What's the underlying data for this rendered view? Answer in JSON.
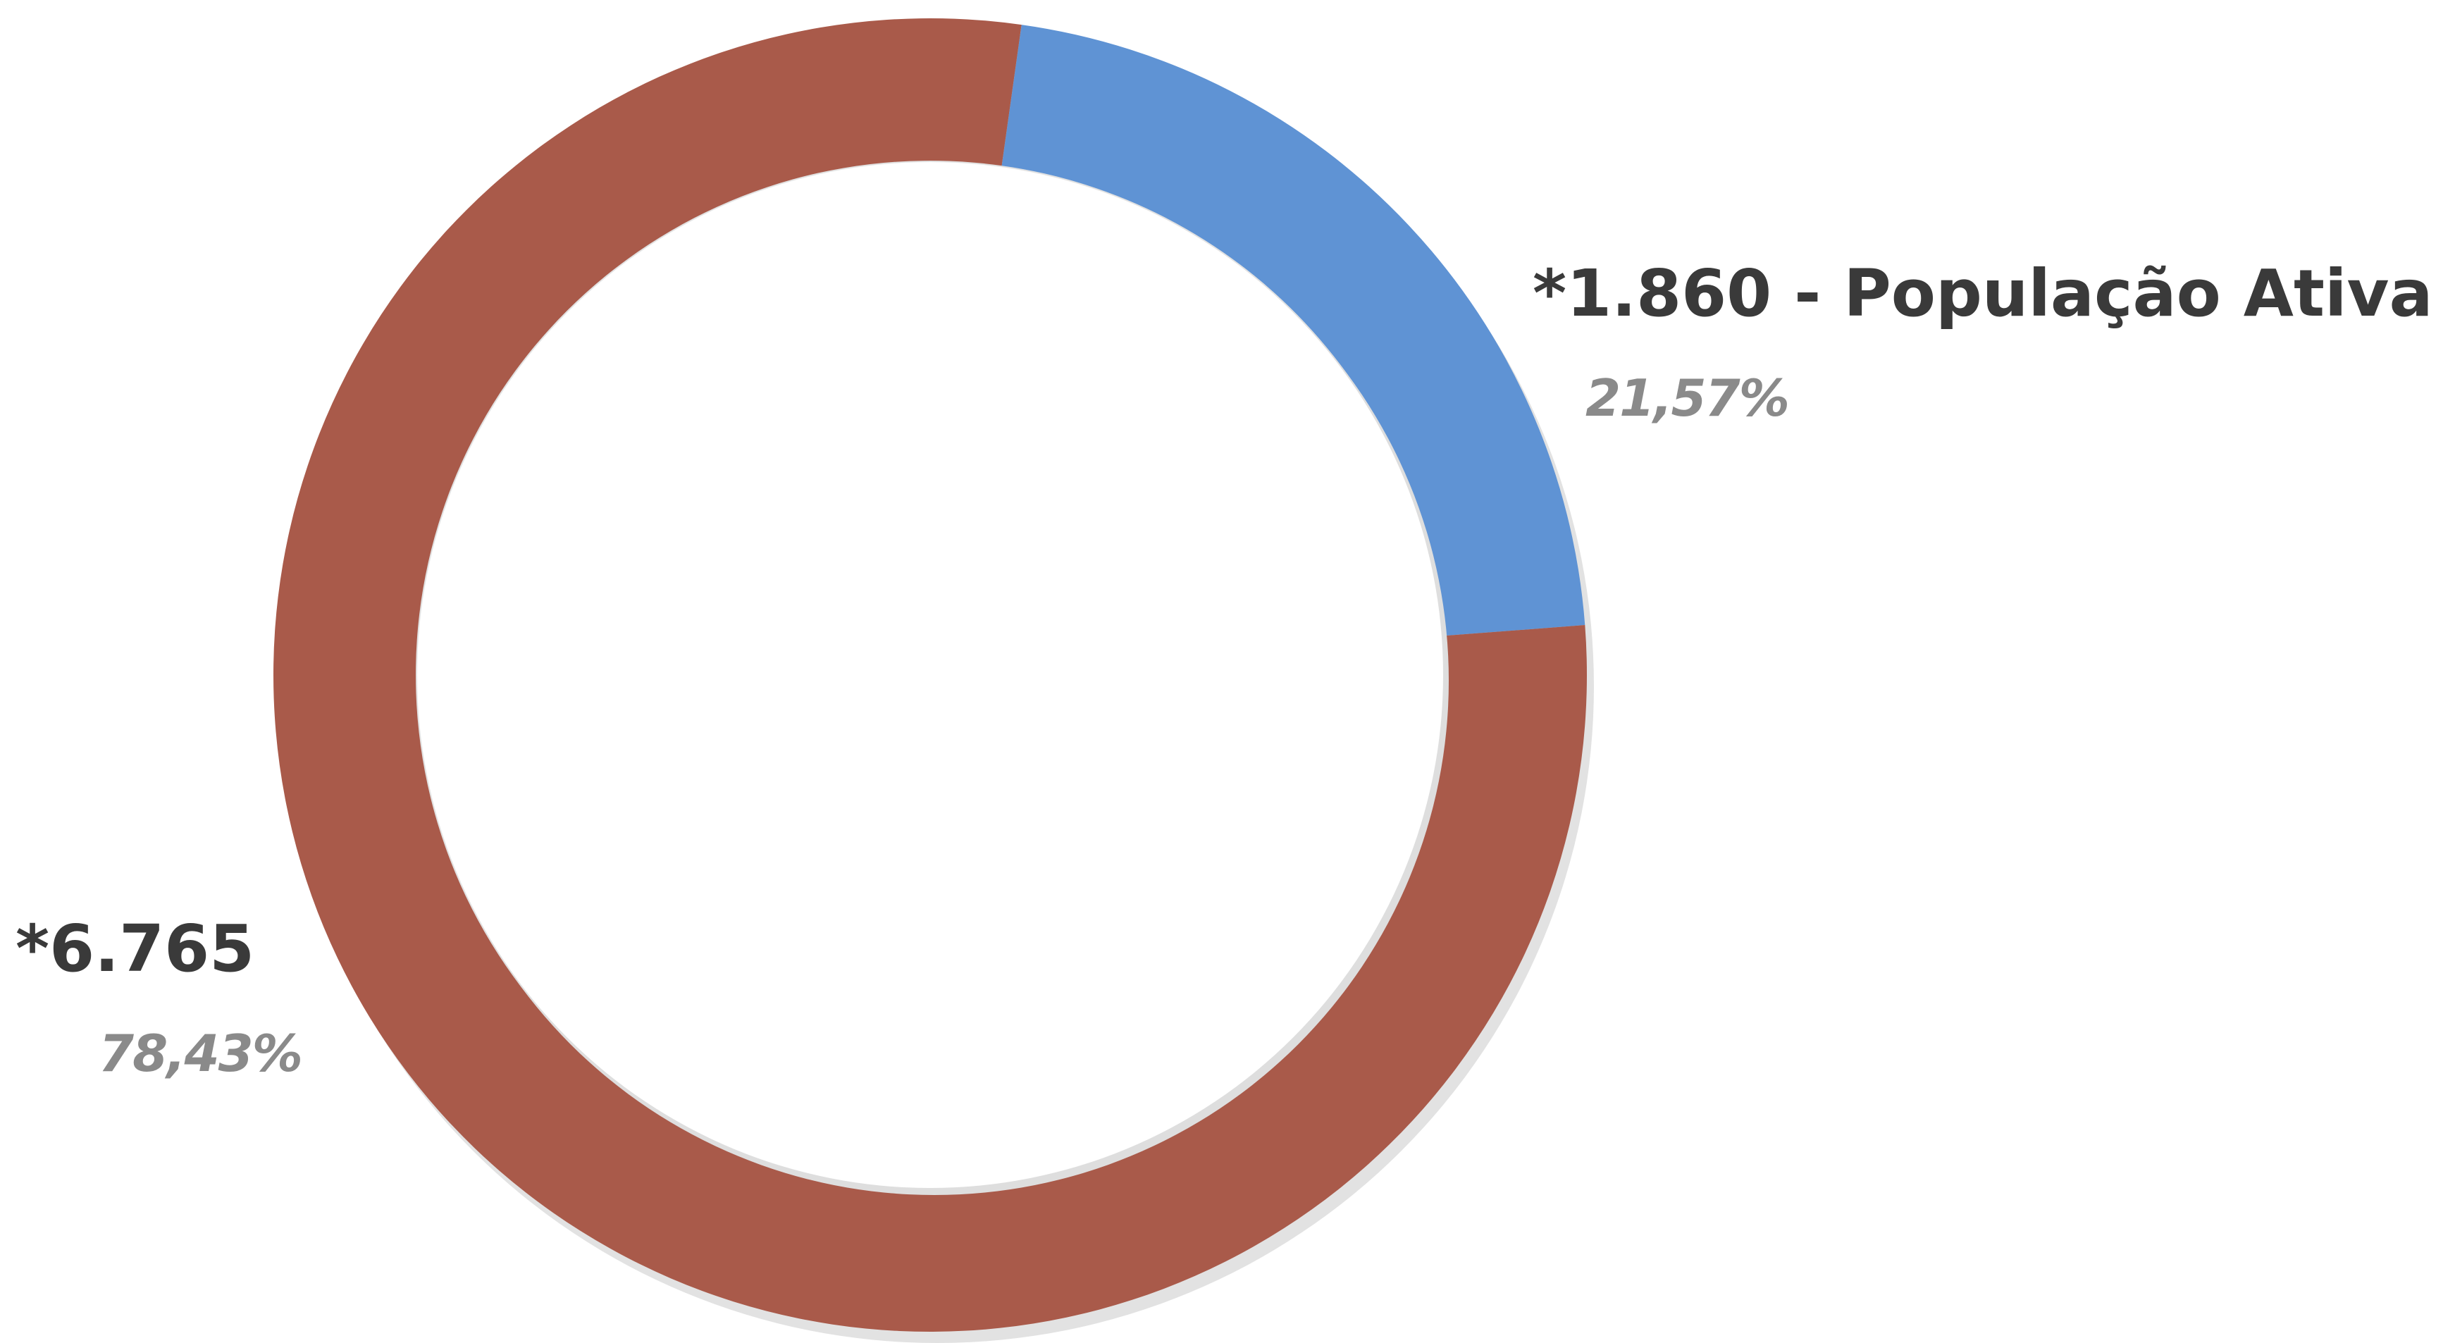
{
  "chart_data": {
    "type": "pie",
    "subtype": "donut",
    "start_angle_deg": 8,
    "direction": "clockwise",
    "slices": [
      {
        "value": 1860,
        "percent": 21.57,
        "value_label": "*1.860 - População Ativa",
        "percent_label": "21,57%",
        "color": "#5f93d4"
      },
      {
        "value": 6765,
        "percent": 78.43,
        "value_label": "*6.765",
        "percent_label": "78,43%",
        "color": "#a95a4a"
      }
    ]
  }
}
